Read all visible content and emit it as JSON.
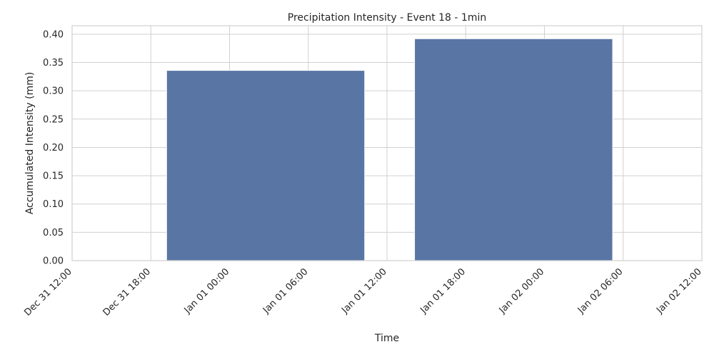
{
  "chart_data": {
    "type": "bar",
    "title": "Precipitation Intensity - Event 18 - 1min",
    "xlabel": "Time",
    "ylabel": "Accumulated Intensity (mm)",
    "ylim": [
      0,
      0.415
    ],
    "yticks": [
      0.0,
      0.05,
      0.1,
      0.15,
      0.2,
      0.25,
      0.3,
      0.35,
      0.4
    ],
    "ytick_labels": [
      "0.00",
      "0.05",
      "0.10",
      "0.15",
      "0.20",
      "0.25",
      "0.30",
      "0.35",
      "0.40"
    ],
    "xticks": [
      {
        "label": "Dec 31 12:00",
        "hours": -12
      },
      {
        "label": "Dec 31 18:00",
        "hours": -6
      },
      {
        "label": "Jan 01 00:00",
        "hours": 0
      },
      {
        "label": "Jan 01 06:00",
        "hours": 6
      },
      {
        "label": "Jan 01 12:00",
        "hours": 12
      },
      {
        "label": "Jan 01 18:00",
        "hours": 18
      },
      {
        "label": "Jan 02 00:00",
        "hours": 24
      },
      {
        "label": "Jan 02 06:00",
        "hours": 30
      },
      {
        "label": "Jan 02 12:00",
        "hours": 36
      }
    ],
    "xlim_hours": [
      -12,
      36
    ],
    "bars": [
      {
        "start_hours": -4.8,
        "end_hours": 10.3,
        "value": 0.336
      },
      {
        "start_hours": 14.1,
        "end_hours": 29.2,
        "value": 0.392
      }
    ],
    "bar_color": "#5975a4",
    "grid": true,
    "legend": "none"
  }
}
